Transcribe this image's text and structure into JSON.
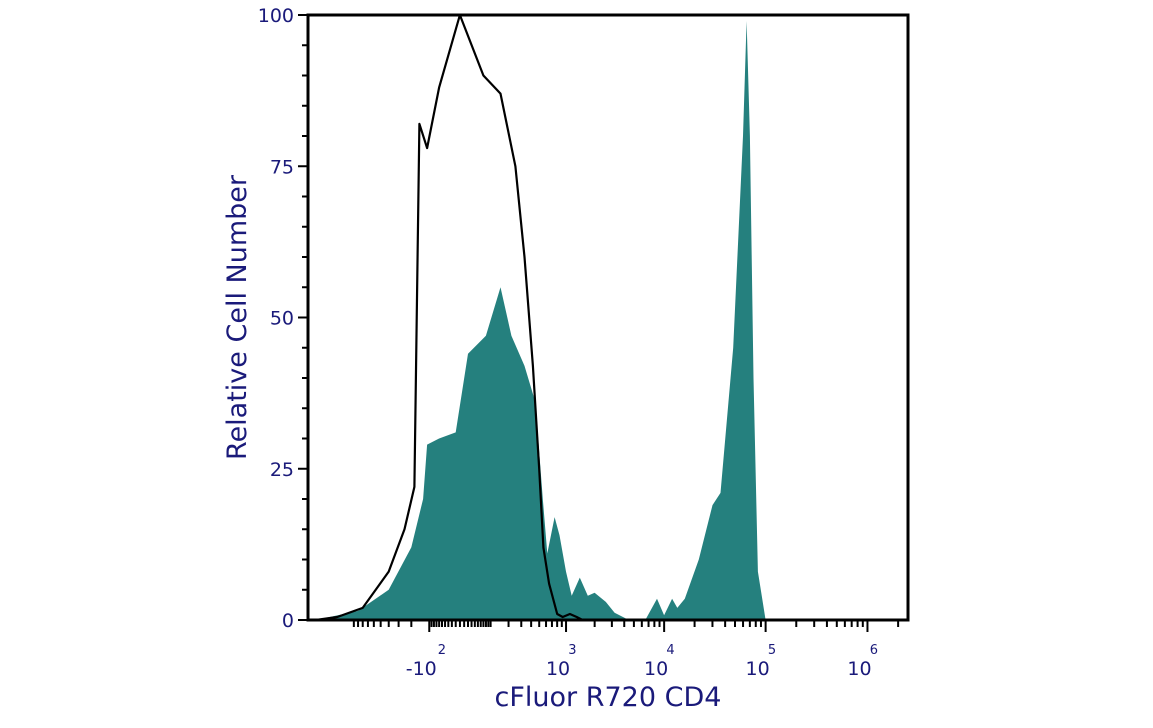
{
  "chart_data": {
    "type": "area",
    "title": "",
    "xlabel": "cFluor R720 CD4",
    "ylabel": "Relative Cell Number",
    "x_scale": "biexponential",
    "x_tick_labels": [
      {
        "base": "-10",
        "exp": "2"
      },
      {
        "base": "10",
        "exp": "3"
      },
      {
        "base": "10",
        "exp": "4"
      },
      {
        "base": "10",
        "exp": "5"
      },
      {
        "base": "10",
        "exp": "6"
      }
    ],
    "y_tick_labels": [
      "0",
      "25",
      "50",
      "75",
      "100"
    ],
    "ylim": [
      0,
      100
    ],
    "grid": false,
    "legend": "none",
    "colors": {
      "stained_fill": "#25807e",
      "control_line": "#000000",
      "axis_text": "#1a1a7a",
      "frame": "#000000"
    },
    "series": [
      {
        "style": "filled",
        "points": [
          [
            -2500,
            0
          ],
          [
            -900,
            1.5
          ],
          [
            -400,
            5
          ],
          [
            -200,
            12
          ],
          [
            -130,
            20
          ],
          [
            -110,
            29
          ],
          [
            -60,
            30
          ],
          [
            -10,
            31
          ],
          [
            20,
            44
          ],
          [
            80,
            47
          ],
          [
            150,
            55
          ],
          [
            220,
            47
          ],
          [
            330,
            42
          ],
          [
            450,
            36
          ],
          [
            550,
            20
          ],
          [
            620,
            11
          ],
          [
            750,
            17
          ],
          [
            850,
            14
          ],
          [
            1000,
            8
          ],
          [
            1150,
            4
          ],
          [
            1400,
            7
          ],
          [
            1700,
            4
          ],
          [
            2000,
            4.5
          ],
          [
            2600,
            3
          ],
          [
            3200,
            1.2
          ],
          [
            4200,
            0.2
          ],
          [
            6500,
            0
          ],
          [
            8500,
            3.5
          ],
          [
            10000,
            0.8
          ],
          [
            12000,
            3.5
          ],
          [
            13500,
            2
          ],
          [
            16000,
            3.5
          ],
          [
            22000,
            10
          ],
          [
            30000,
            19
          ],
          [
            36000,
            21
          ],
          [
            48000,
            45
          ],
          [
            60000,
            80
          ],
          [
            65000,
            99
          ],
          [
            70000,
            80
          ],
          [
            76000,
            40
          ],
          [
            84000,
            8
          ],
          [
            100000,
            0
          ],
          [
            2000000,
            0
          ]
        ]
      },
      {
        "style": "outline",
        "points": [
          [
            -2500,
            0
          ],
          [
            -1500,
            0.5
          ],
          [
            -800,
            2
          ],
          [
            -400,
            8
          ],
          [
            -250,
            15
          ],
          [
            -180,
            22
          ],
          [
            -150,
            82
          ],
          [
            -110,
            78
          ],
          [
            -60,
            88
          ],
          [
            0,
            100
          ],
          [
            70,
            90
          ],
          [
            150,
            87
          ],
          [
            250,
            75
          ],
          [
            330,
            60
          ],
          [
            420,
            42
          ],
          [
            500,
            25
          ],
          [
            560,
            12
          ],
          [
            650,
            6
          ],
          [
            800,
            1
          ],
          [
            920,
            0.5
          ],
          [
            1100,
            1
          ],
          [
            1300,
            0.5
          ],
          [
            1500,
            0
          ],
          [
            2000000,
            0
          ]
        ]
      }
    ]
  }
}
